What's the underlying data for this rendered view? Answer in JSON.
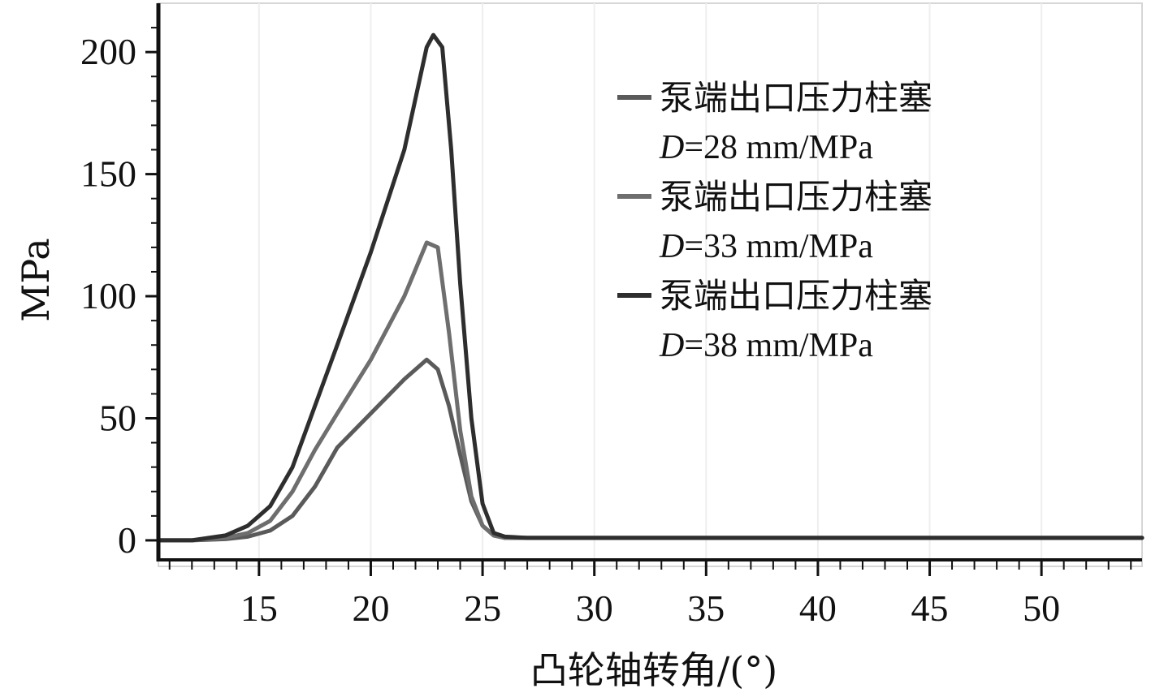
{
  "chart_data": {
    "type": "line",
    "title": "",
    "xlabel": "凸轮轴转角/(°)",
    "ylabel": "MPa",
    "xlim": [
      10.5,
      54.5
    ],
    "ylim": [
      -8,
      220
    ],
    "xticks": [
      15,
      20,
      25,
      30,
      35,
      40,
      45,
      50
    ],
    "yticks": [
      0,
      50,
      100,
      150,
      200
    ],
    "grid": false,
    "legend_position": "top-right",
    "series": [
      {
        "name": "泵端出口压力柱塞",
        "sub_prefix": "D",
        "sub_rest": "=28 mm/MPa",
        "color": "#5a5a5a",
        "x": [
          10.5,
          12.0,
          13.5,
          14.5,
          15.5,
          16.5,
          17.5,
          18.5,
          20.0,
          21.5,
          22.5,
          23.0,
          23.5,
          24.0,
          24.5,
          25.0,
          25.5,
          26.0,
          27.0,
          54.5
        ],
        "y": [
          0,
          0,
          0.5,
          1.5,
          4,
          10,
          22,
          38,
          52,
          66,
          74,
          70,
          55,
          35,
          16,
          6,
          2,
          1,
          1,
          1
        ]
      },
      {
        "name": "泵端出口压力柱塞",
        "sub_prefix": "D",
        "sub_rest": "=33 mm/MPa",
        "color": "#6e6e6e",
        "x": [
          10.5,
          12.0,
          13.5,
          14.5,
          15.5,
          16.5,
          17.5,
          18.5,
          20.0,
          21.5,
          22.5,
          23.0,
          23.5,
          24.0,
          24.5,
          25.0,
          25.5,
          26.0,
          27.0,
          54.5
        ],
        "y": [
          0,
          0,
          1,
          3,
          8,
          20,
          37,
          52,
          74,
          100,
          122,
          120,
          85,
          45,
          18,
          6,
          2,
          1,
          1,
          1
        ]
      },
      {
        "name": "泵端出口压力柱塞",
        "sub_prefix": "D",
        "sub_rest": "=38 mm/MPa",
        "color": "#2e2e2e",
        "x": [
          10.5,
          12.0,
          13.5,
          14.5,
          15.5,
          16.5,
          17.5,
          18.5,
          20.0,
          21.5,
          22.5,
          22.8,
          23.2,
          23.6,
          24.0,
          24.5,
          25.0,
          25.5,
          26.0,
          27.0,
          54.5
        ],
        "y": [
          0,
          0,
          2,
          6,
          14,
          30,
          55,
          80,
          118,
          160,
          202,
          207,
          202,
          160,
          105,
          50,
          15,
          3,
          1.5,
          1,
          1
        ]
      }
    ]
  }
}
